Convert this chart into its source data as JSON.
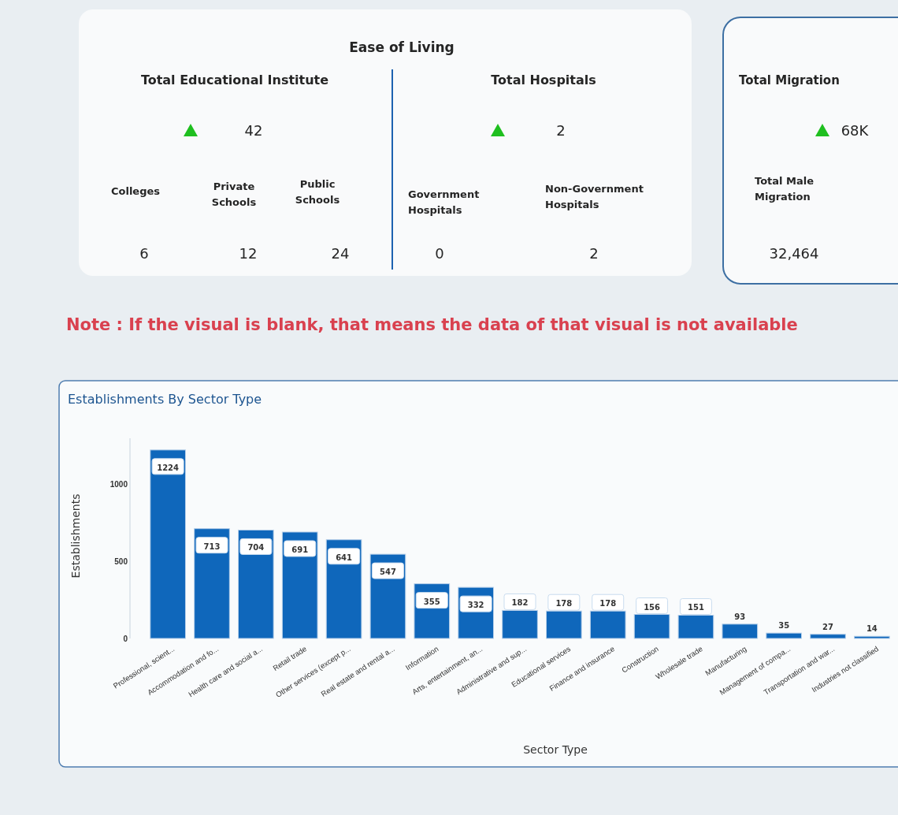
{
  "chart_data": [
    {
      "type": "other",
      "title": "Ease of Living",
      "categories": [
        "Total Educational Institute",
        "Colleges",
        "Private Schools",
        "Public Schools",
        "Total Hospitals",
        "Government Hospitals",
        "Non-Government Hospitals"
      ],
      "values": [
        42,
        6,
        12,
        24,
        2,
        0,
        2
      ],
      "data_labels": true
    },
    {
      "type": "other",
      "categories": [
        "Total Migration",
        "Total Male Migration"
      ],
      "values": [
        68000,
        32464
      ],
      "value_labels": [
        "68K",
        "32,464"
      ]
    },
    {
      "type": "bar",
      "title": "Establishments By Sector Type",
      "xlabel": "Sector Type",
      "ylabel": "Establishments",
      "categories": [
        "Professional, scient...",
        "Accommodation and fo...",
        "Health care and social a...",
        "Retail trade",
        "Other services (except p...",
        "Real estate and rental a...",
        "Information",
        "Arts, entertainment, an...",
        "Administrative and sup...",
        "Educational services",
        "Finance and insurance",
        "Construction",
        "Wholesale trade",
        "Manufacturing",
        "Management of compa...",
        "Transportation and war...",
        "Industries not classified"
      ],
      "values": [
        1224,
        713,
        704,
        691,
        641,
        547,
        355,
        332,
        182,
        178,
        178,
        156,
        151,
        93,
        35,
        27,
        14
      ],
      "color": "#0f67bb",
      "ylim": [
        0,
        1300
      ],
      "yticks": [
        0,
        500,
        1000
      ],
      "grid": false,
      "data_labels": true,
      "annotations": [
        "Note : If the visual is blank, that means the data of that visual is not available"
      ]
    }
  ]
}
